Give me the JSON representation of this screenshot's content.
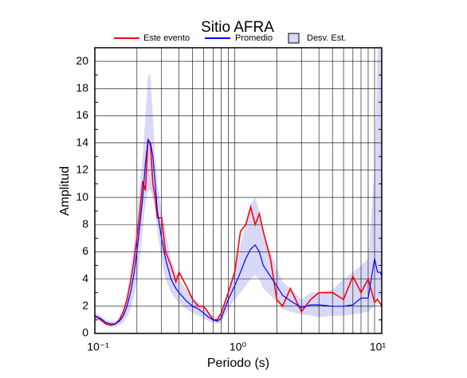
{
  "chart_data": {
    "type": "line",
    "title": "Sitio AFRA",
    "xlabel": "Periodo (s)",
    "ylabel": "Amplitud",
    "xscale": "log",
    "grid": true,
    "xlim": [
      0.1,
      11.25
    ],
    "ylim": [
      0,
      21
    ],
    "xticks": [
      {
        "value": 0.1,
        "label": "10⁻¹"
      },
      {
        "value": 1,
        "label": "10⁰"
      },
      {
        "value": 10,
        "label": "10¹"
      }
    ],
    "xgrid": [
      0.2,
      0.3,
      0.4,
      0.5,
      0.6,
      0.7,
      0.8,
      0.9,
      2,
      3,
      4,
      5,
      6,
      7,
      8,
      9
    ],
    "yticks": [
      0,
      2,
      4,
      6,
      8,
      10,
      12,
      14,
      16,
      18,
      20
    ],
    "yminor": [
      1,
      3,
      5,
      7,
      9,
      11,
      13,
      15,
      17,
      19
    ],
    "x": [
      0.1,
      0.11,
      0.12,
      0.13,
      0.14,
      0.15,
      0.16,
      0.17,
      0.18,
      0.19,
      0.2,
      0.21,
      0.22,
      0.23,
      0.24,
      0.25,
      0.26,
      0.27,
      0.28,
      0.3,
      0.32,
      0.35,
      0.38,
      0.4,
      0.45,
      0.5,
      0.55,
      0.6,
      0.65,
      0.7,
      0.75,
      0.8,
      0.9,
      1.0,
      1.1,
      1.2,
      1.3,
      1.4,
      1.5,
      1.6,
      1.8,
      2.0,
      2.2,
      2.5,
      3,
      3.5,
      4,
      5,
      6,
      7,
      8,
      9,
      10,
      10.5,
      11,
      11.25
    ],
    "series": [
      {
        "name": "Este evento",
        "color": "#ff0000",
        "values": [
          1.3,
          1.0,
          0.7,
          0.6,
          0.7,
          1.0,
          1.6,
          2.5,
          3.8,
          5.3,
          7,
          9,
          11.2,
          10.5,
          14.3,
          13.8,
          11,
          10,
          8.5,
          8.5,
          6,
          5,
          3.8,
          4.5,
          3.5,
          2.5,
          2,
          2,
          1.5,
          1,
          1,
          1.5,
          3,
          4.5,
          7.5,
          8,
          9.3,
          8,
          8.8,
          7.5,
          5.5,
          2.5,
          2,
          3.3,
          1.6,
          2.5,
          3,
          3,
          2.5,
          4.2,
          3,
          4,
          2.3,
          2.5,
          2.2,
          2.0
        ]
      },
      {
        "name": "Promedio",
        "color": "#0000ff",
        "values": [
          1.3,
          1.1,
          0.8,
          0.7,
          0.7,
          0.9,
          1.3,
          2,
          3,
          4.3,
          6,
          8,
          10,
          12.5,
          14.2,
          14,
          13,
          11,
          9,
          7,
          5.5,
          4,
          3.3,
          3,
          2.4,
          2,
          1.8,
          1.5,
          1.2,
          1,
          0.9,
          1.1,
          2.5,
          3.5,
          4.5,
          5.5,
          6.2,
          6.5,
          6,
          5,
          4.2,
          3.5,
          2.8,
          2.4,
          1.9,
          2.1,
          2.1,
          2,
          2,
          2.1,
          2.6,
          2.6,
          5.5,
          4.5,
          4.5,
          4.2
        ]
      },
      {
        "name": "Desv. Est.",
        "color": "#d8d8f8",
        "upper": [
          1.5,
          1.3,
          1.0,
          0.9,
          0.9,
          1.2,
          1.8,
          3,
          4.5,
          6.5,
          8.5,
          11,
          13,
          16,
          19,
          19,
          16,
          13,
          11,
          9,
          7.5,
          5.5,
          4.5,
          4,
          3.2,
          2.6,
          2.3,
          2,
          1.6,
          1.3,
          1.2,
          1.5,
          3.3,
          4.8,
          6.5,
          8,
          9.5,
          10,
          9,
          7.5,
          6,
          4.8,
          3.8,
          3.3,
          2.5,
          3,
          3,
          3.2,
          4,
          4.5,
          5,
          5.5,
          12,
          21,
          21,
          21
        ],
        "lower": [
          1.1,
          0.9,
          0.6,
          0.5,
          0.5,
          0.6,
          0.8,
          1.2,
          1.8,
          2.6,
          4,
          5.5,
          7.5,
          9.5,
          10.5,
          10.5,
          10,
          9,
          7.5,
          5.5,
          4,
          3,
          2.5,
          2.2,
          1.8,
          1.5,
          1.3,
          1.1,
          0.9,
          0.8,
          0.7,
          0.8,
          1.8,
          2.5,
          3,
          3.5,
          4,
          4.3,
          4,
          3.3,
          2.8,
          2.3,
          1.8,
          1.6,
          1.4,
          1.3,
          1.2,
          1.3,
          1.3,
          1.4,
          1.5,
          1.6,
          2,
          2.5,
          2.6,
          2.6
        ]
      }
    ]
  }
}
